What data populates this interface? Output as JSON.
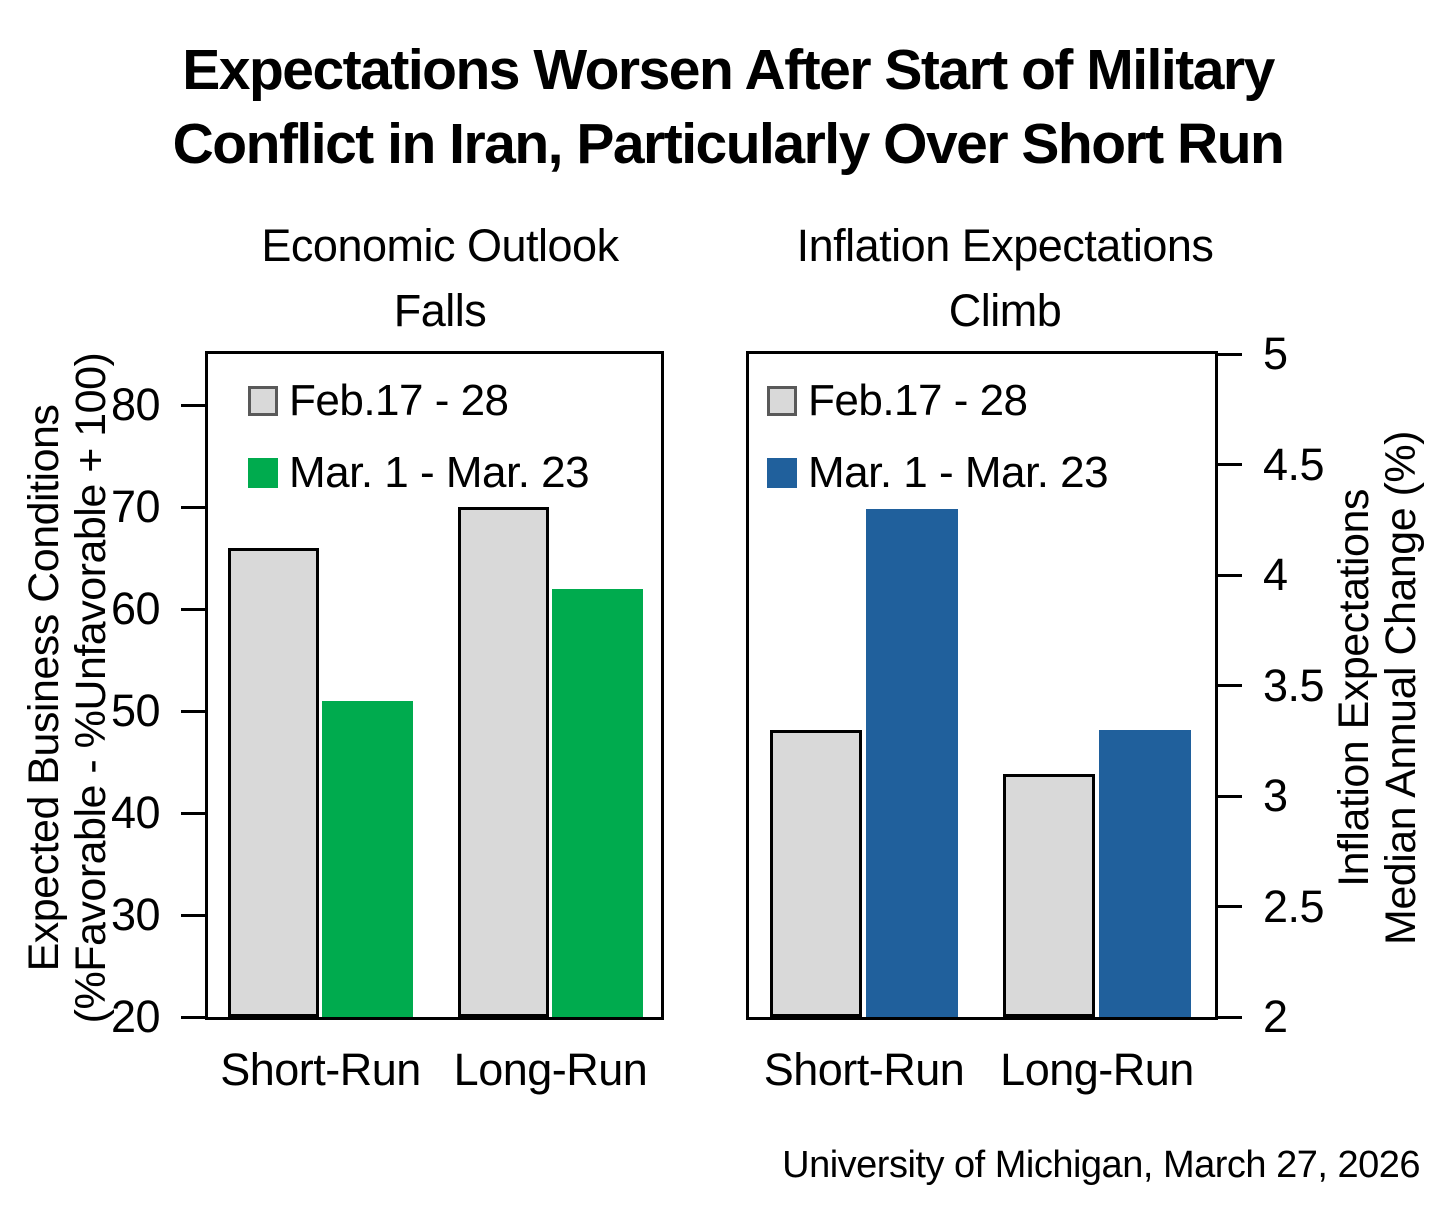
{
  "title": {
    "line1": "Expectations Worsen After Start of Military",
    "line2": "Conflict in Iran, Particularly Over Short Run"
  },
  "source": "University of Michigan, March 27, 2026",
  "colors": {
    "feb_fill": "#D9D9D9",
    "feb_bar_outline": "#000000",
    "mar_green_fill": "#00AB4E",
    "mar_blue_fill": "#20609C",
    "legend_gray_swatch_border": "#595959",
    "text": "#000000",
    "frame": "#000000"
  },
  "chart_data": [
    {
      "type": "bar",
      "title": "Economic Outlook Falls",
      "title_lines": [
        "Economic Outlook",
        "Falls"
      ],
      "categories": [
        "Short-Run",
        "Long-Run"
      ],
      "series": [
        {
          "name": "Feb.17 - 28",
          "values": [
            66,
            70
          ],
          "color": "#D9D9D9",
          "outlined": true
        },
        {
          "name": "Mar. 1 - Mar. 23",
          "values": [
            51,
            62
          ],
          "color": "#00AB4E",
          "outlined": false
        }
      ],
      "ylabel": "Expected Business Conditions (%Favorable - %Unfavorable + 100)",
      "ylabel_lines": [
        "Expected Business Conditions",
        "(%Favorable - %Unfavorable + 100)"
      ],
      "yaxis_side": "left",
      "ylim": [
        20,
        85
      ],
      "yticks": [
        "20",
        "30",
        "40",
        "50",
        "60",
        "70",
        "80"
      ],
      "grid": false,
      "legend_position": "top-left-inside"
    },
    {
      "type": "bar",
      "title": "Inflation Expectations Climb",
      "title_lines": [
        "Inflation Expectations",
        "Climb"
      ],
      "categories": [
        "Short-Run",
        "Long-Run"
      ],
      "series": [
        {
          "name": "Feb.17 - 28",
          "values": [
            3.3,
            3.1
          ],
          "color": "#D9D9D9",
          "outlined": true
        },
        {
          "name": "Mar. 1 - Mar. 23",
          "values": [
            4.3,
            3.3
          ],
          "color": "#20609C",
          "outlined": false
        }
      ],
      "ylabel": "Inflation Expectations Median Annual Change (%)",
      "ylabel_lines": [
        "Inflation Expectations",
        "Median Annual Change (%)"
      ],
      "yaxis_side": "right",
      "ylim": [
        2,
        5
      ],
      "yticks": [
        "2",
        "2.5",
        "3",
        "3.5",
        "4",
        "4.5",
        "5"
      ],
      "grid": false,
      "legend_position": "top-left-inside"
    }
  ]
}
